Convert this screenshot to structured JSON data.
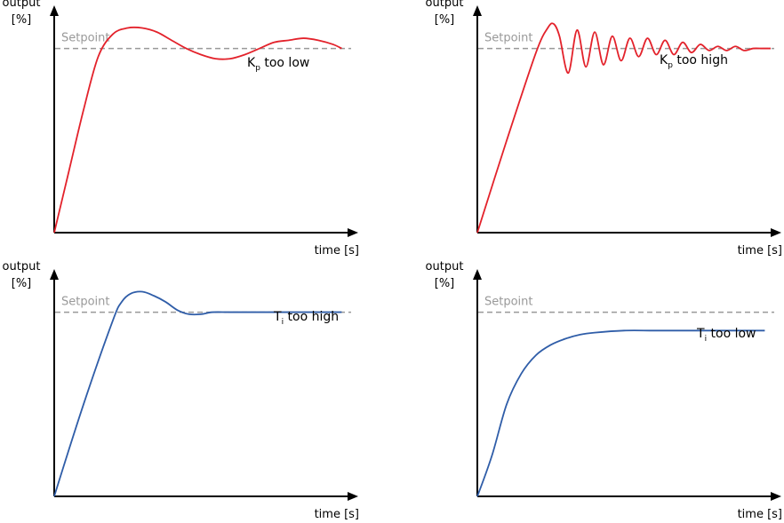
{
  "colors": {
    "red": "#e3222b",
    "blue": "#2f5da8",
    "setpoint": "#999999",
    "axis": "#000000"
  },
  "chart_data": [
    {
      "type": "line",
      "title_main": "K",
      "title_sub": "p",
      "title_rest": " too low",
      "ylabel_line1": "output",
      "ylabel_line2": "[%]",
      "xlabel": "time [s]",
      "setpoint_label": "Setpoint",
      "setpoint_value": 0.9,
      "ylim": [
        0,
        1.05
      ],
      "xlim": [
        0,
        1
      ],
      "color": "red",
      "x": [
        0,
        0.05,
        0.1,
        0.15,
        0.2,
        0.25,
        0.3,
        0.35,
        0.4,
        0.45,
        0.5,
        0.55,
        0.6,
        0.65,
        0.7,
        0.75,
        0.8,
        0.85,
        0.9,
        0.95,
        0.98
      ],
      "y": [
        0,
        0.3,
        0.6,
        0.86,
        0.97,
        1.0,
        1.0,
        0.98,
        0.94,
        0.9,
        0.87,
        0.85,
        0.85,
        0.87,
        0.9,
        0.93,
        0.94,
        0.95,
        0.94,
        0.92,
        0.9
      ]
    },
    {
      "type": "line",
      "title_main": "K",
      "title_sub": "p",
      "title_rest": " too high",
      "ylabel_line1": "output",
      "ylabel_line2": "[%]",
      "xlabel": "time [s]",
      "setpoint_label": "Setpoint",
      "setpoint_value": 0.9,
      "ylim": [
        0,
        1.05
      ],
      "xlim": [
        0,
        1
      ],
      "color": "red",
      "x": [
        0,
        0.1,
        0.2,
        0.24,
        0.26,
        0.28,
        0.31,
        0.34,
        0.37,
        0.4,
        0.43,
        0.46,
        0.49,
        0.52,
        0.55,
        0.58,
        0.61,
        0.64,
        0.67,
        0.7,
        0.73,
        0.76,
        0.79,
        0.82,
        0.85,
        0.88,
        0.91,
        0.94,
        0.97,
        1.0
      ],
      "y": [
        0,
        0.45,
        0.88,
        1.0,
        1.02,
        0.96,
        0.78,
        0.99,
        0.81,
        0.98,
        0.82,
        0.96,
        0.84,
        0.95,
        0.86,
        0.95,
        0.87,
        0.94,
        0.87,
        0.93,
        0.88,
        0.92,
        0.89,
        0.91,
        0.89,
        0.91,
        0.89,
        0.9,
        0.9,
        0.9
      ]
    },
    {
      "type": "line",
      "title_main": "T",
      "title_sub": "i",
      "title_rest": " too high",
      "ylabel_line1": "output",
      "ylabel_line2": "[%]",
      "xlabel": "time [s]",
      "setpoint_label": "Setpoint",
      "setpoint_value": 0.9,
      "ylim": [
        0,
        1.05
      ],
      "xlim": [
        0,
        1
      ],
      "color": "blue",
      "x": [
        0,
        0.1,
        0.2,
        0.23,
        0.26,
        0.3,
        0.34,
        0.38,
        0.42,
        0.46,
        0.5,
        0.54,
        0.6,
        0.7,
        0.8,
        0.9,
        0.98
      ],
      "y": [
        0,
        0.45,
        0.86,
        0.95,
        0.99,
        1.0,
        0.98,
        0.95,
        0.91,
        0.89,
        0.89,
        0.9,
        0.9,
        0.9,
        0.9,
        0.9,
        0.9
      ]
    },
    {
      "type": "line",
      "title_main": "T",
      "title_sub": "i",
      "title_rest": " too low",
      "ylabel_line1": "output",
      "ylabel_line2": "[%]",
      "xlabel": "time [s]",
      "setpoint_label": "Setpoint",
      "setpoint_value": 0.9,
      "ylim": [
        0,
        1.05
      ],
      "xlim": [
        0,
        1
      ],
      "color": "blue",
      "x": [
        0,
        0.05,
        0.1,
        0.15,
        0.2,
        0.25,
        0.3,
        0.35,
        0.4,
        0.5,
        0.6,
        0.7,
        0.8,
        0.9,
        0.98
      ],
      "y": [
        0,
        0.2,
        0.45,
        0.6,
        0.69,
        0.74,
        0.77,
        0.79,
        0.8,
        0.81,
        0.81,
        0.81,
        0.81,
        0.81,
        0.81
      ]
    }
  ]
}
